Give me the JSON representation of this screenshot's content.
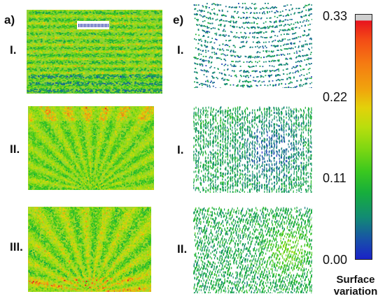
{
  "panel_labels": {
    "a": "a)",
    "e": "e)"
  },
  "row_labels": {
    "a": [
      "I.",
      "II.",
      "III."
    ],
    "e": [
      "I.",
      "I.",
      "II."
    ]
  },
  "colorbar": {
    "ticks": [
      "0.33",
      "0.22",
      "0.11",
      "0.00"
    ],
    "caption_line1": "Surface",
    "caption_line2": "variation",
    "colors": {
      "top_gray": "#cfcfcf",
      "red": "#e8141e",
      "orange": "#f57b12",
      "yellow": "#e3d10a",
      "green": "#3bc81e",
      "teal": "#128a74",
      "blue": "#1a22c8"
    }
  }
}
